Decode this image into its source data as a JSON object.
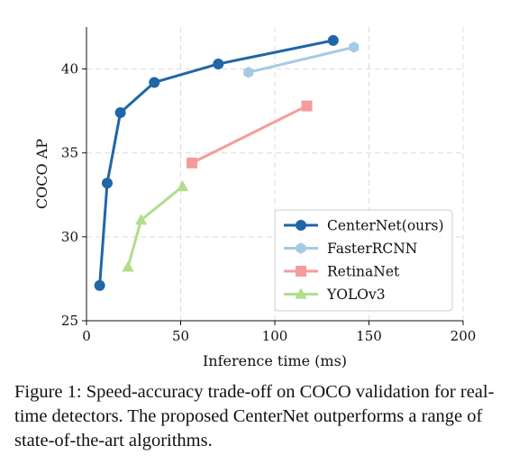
{
  "chart_data": {
    "type": "line",
    "xlabel": "Inference time (ms)",
    "ylabel": "COCO AP",
    "xlim": [
      0,
      200
    ],
    "ylim": [
      25,
      42.5
    ],
    "xticks": [
      0,
      50,
      100,
      150,
      200
    ],
    "yticks": [
      25,
      30,
      35,
      40
    ],
    "grid": true,
    "legend_position": "lower-right",
    "series": [
      {
        "name": "CenterNet(ours)",
        "color": "#2166a6",
        "marker": "circle",
        "x": [
          7,
          11,
          18,
          36,
          70,
          131
        ],
        "y": [
          27.1,
          33.2,
          37.4,
          39.2,
          40.3,
          41.7
        ]
      },
      {
        "name": "FasterRCNN",
        "color": "#a6cae3",
        "marker": "hexagon",
        "x": [
          86,
          142
        ],
        "y": [
          39.8,
          41.3
        ]
      },
      {
        "name": "RetinaNet",
        "color": "#f49c9c",
        "marker": "square",
        "x": [
          56,
          117
        ],
        "y": [
          34.4,
          37.8
        ]
      },
      {
        "name": "YOLOv3",
        "color": "#b2dd8a",
        "marker": "triangle",
        "x": [
          22,
          29,
          51
        ],
        "y": [
          28.2,
          31.0,
          33.0
        ]
      }
    ]
  },
  "caption": "Figure 1: Speed-accuracy trade-off on COCO validation for real-time detectors. The proposed CenterNet outperforms a range of state-of-the-art algorithms."
}
